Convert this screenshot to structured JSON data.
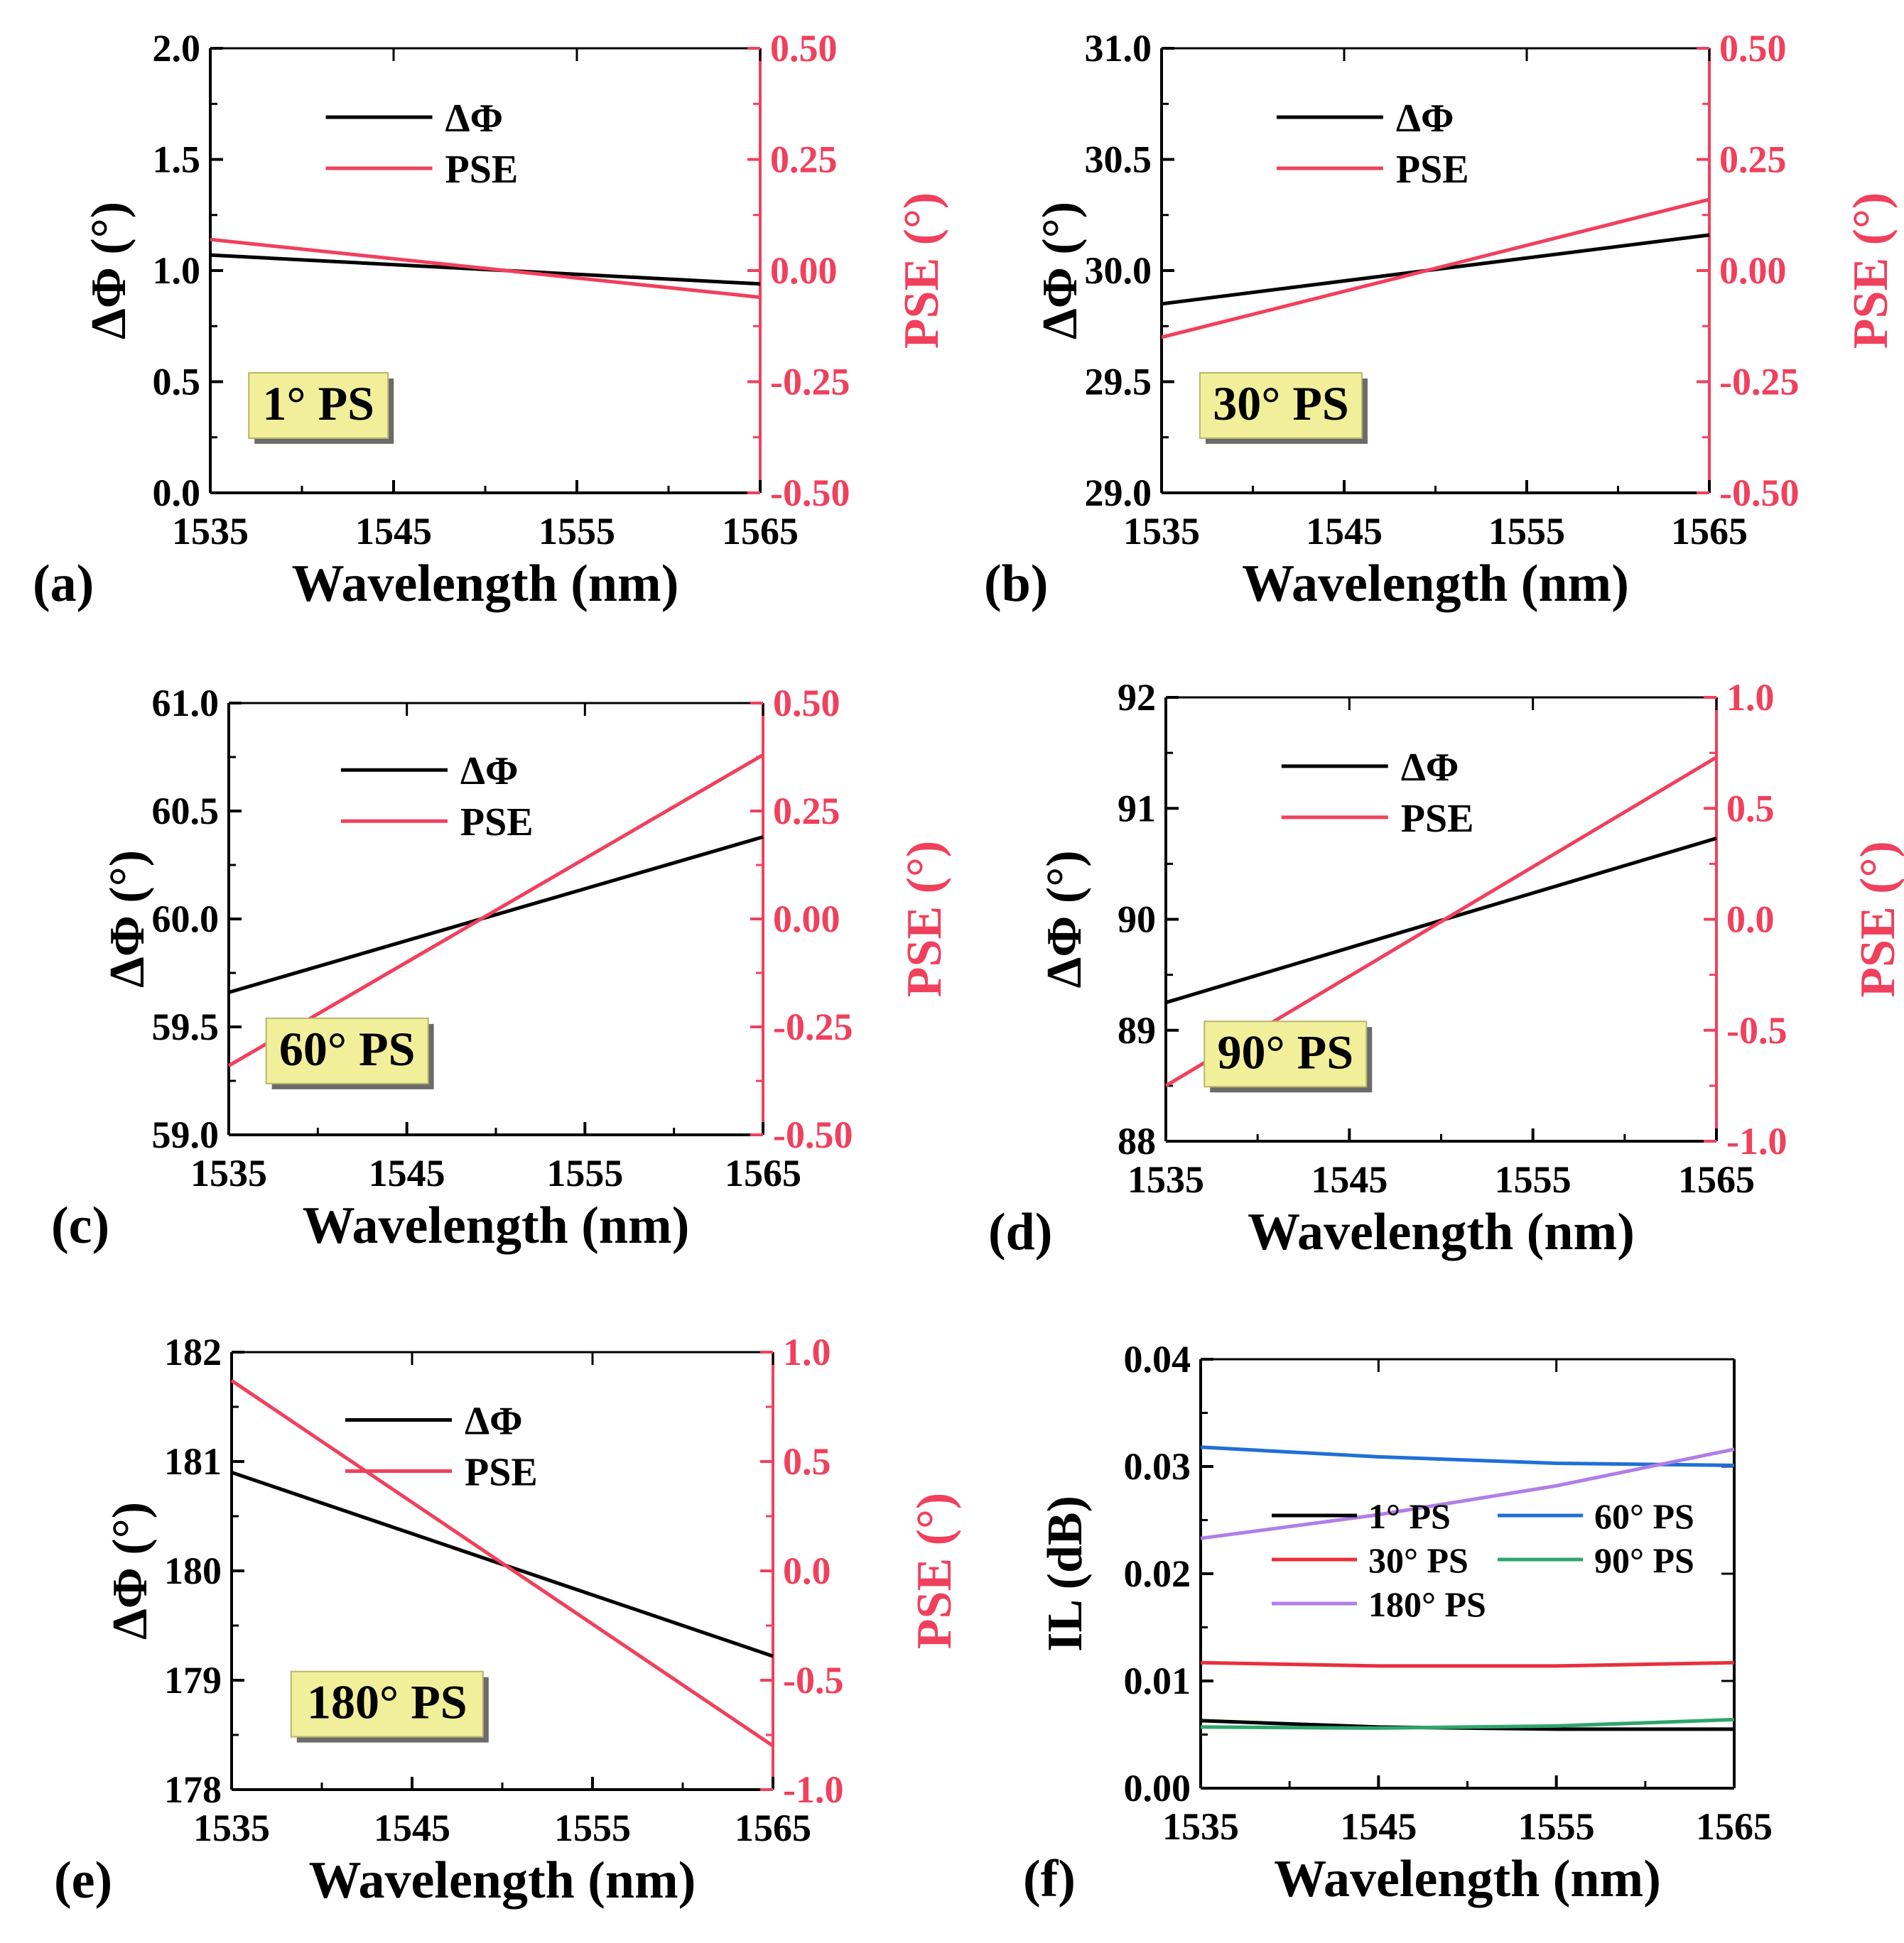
{
  "colors": {
    "black": "#000000",
    "pse": "#f0405c",
    "blue": "#1f6fd6",
    "red": "#e8303a",
    "green": "#2ea66b",
    "purple": "#b07ee8",
    "badge_fill": "#f2ef9b",
    "badge_shadow": "#6b6b6b"
  },
  "chart_data": [
    {
      "panel": "(a)",
      "type": "line",
      "badge": "1° PS",
      "xlabel": "Wavelength (nm)",
      "ylabel": "ΔΦ (°)",
      "ylabel2": "PSE (°)",
      "xlim": [
        1535,
        1565
      ],
      "ylim": [
        0.0,
        2.0
      ],
      "ylim2": [
        -0.5,
        0.5
      ],
      "xticks": [
        "1535",
        "1545",
        "1555",
        "1565"
      ],
      "yticks": [
        "0.0",
        "0.5",
        "1.0",
        "1.5",
        "2.0"
      ],
      "y2ticks": [
        "-0.50",
        "-0.25",
        "0.00",
        "0.25",
        "0.50"
      ],
      "legend": [
        "ΔΦ",
        "PSE"
      ],
      "series": [
        {
          "name": "ΔΦ",
          "axis": "left",
          "x": [
            1535,
            1565
          ],
          "values": [
            1.07,
            0.94
          ]
        },
        {
          "name": "PSE",
          "axis": "right",
          "x": [
            1535,
            1565
          ],
          "values": [
            0.07,
            -0.06
          ]
        }
      ]
    },
    {
      "panel": "(b)",
      "type": "line",
      "badge": "30° PS",
      "xlabel": "Wavelength (nm)",
      "ylabel": "ΔΦ (°)",
      "ylabel2": "PSE (°)",
      "xlim": [
        1535,
        1565
      ],
      "ylim": [
        29.0,
        31.0
      ],
      "ylim2": [
        -0.5,
        0.5
      ],
      "xticks": [
        "1535",
        "1545",
        "1555",
        "1565"
      ],
      "yticks": [
        "29.0",
        "29.5",
        "30.0",
        "30.5",
        "31.0"
      ],
      "y2ticks": [
        "-0.50",
        "-0.25",
        "0.00",
        "0.25",
        "0.50"
      ],
      "legend": [
        "ΔΦ",
        "PSE"
      ],
      "series": [
        {
          "name": "ΔΦ",
          "axis": "left",
          "x": [
            1535,
            1565
          ],
          "values": [
            29.85,
            30.16
          ]
        },
        {
          "name": "PSE",
          "axis": "right",
          "x": [
            1535,
            1565
          ],
          "values": [
            -0.15,
            0.16
          ]
        }
      ]
    },
    {
      "panel": "(c)",
      "type": "line",
      "badge": "60° PS",
      "xlabel": "Wavelength (nm)",
      "ylabel": "ΔΦ (°)",
      "ylabel2": "PSE (°)",
      "xlim": [
        1535,
        1565
      ],
      "ylim": [
        59.0,
        61.0
      ],
      "ylim2": [
        -0.5,
        0.5
      ],
      "xticks": [
        "1535",
        "1545",
        "1555",
        "1565"
      ],
      "yticks": [
        "59.0",
        "59.5",
        "60.0",
        "60.5",
        "61.0"
      ],
      "y2ticks": [
        "-0.50",
        "-0.25",
        "0.00",
        "0.25",
        "0.50"
      ],
      "legend": [
        "ΔΦ",
        "PSE"
      ],
      "series": [
        {
          "name": "ΔΦ",
          "axis": "left",
          "x": [
            1535,
            1565
          ],
          "values": [
            59.66,
            60.38
          ]
        },
        {
          "name": "PSE",
          "axis": "right",
          "x": [
            1535,
            1565
          ],
          "values": [
            -0.34,
            0.38
          ]
        }
      ]
    },
    {
      "panel": "(d)",
      "type": "line",
      "badge": "90° PS",
      "xlabel": "Wavelength (nm)",
      "ylabel": "ΔΦ (°)",
      "ylabel2": "PSE (°)",
      "xlim": [
        1535,
        1565
      ],
      "ylim": [
        88,
        92
      ],
      "ylim2": [
        -1.0,
        1.0
      ],
      "xticks": [
        "1535",
        "1545",
        "1555",
        "1565"
      ],
      "yticks": [
        "88",
        "89",
        "90",
        "91",
        "92"
      ],
      "y2ticks": [
        "-1.0",
        "-0.5",
        "0.0",
        "0.5",
        "1.0"
      ],
      "legend": [
        "ΔΦ",
        "PSE"
      ],
      "series": [
        {
          "name": "ΔΦ",
          "axis": "left",
          "x": [
            1535,
            1565
          ],
          "values": [
            89.25,
            90.73
          ]
        },
        {
          "name": "PSE",
          "axis": "right",
          "x": [
            1535,
            1565
          ],
          "values": [
            -0.75,
            0.73
          ]
        }
      ]
    },
    {
      "panel": "(e)",
      "type": "line",
      "badge": "180° PS",
      "xlabel": "Wavelength (nm)",
      "ylabel": "ΔΦ (°)",
      "ylabel2": "PSE (°)",
      "xlim": [
        1535,
        1565
      ],
      "ylim": [
        178,
        182
      ],
      "ylim2": [
        -1.0,
        1.0
      ],
      "xticks": [
        "1535",
        "1545",
        "1555",
        "1565"
      ],
      "yticks": [
        "178",
        "179",
        "180",
        "181",
        "182"
      ],
      "y2ticks": [
        "-1.0",
        "-0.5",
        "0.0",
        "0.5",
        "1.0"
      ],
      "legend": [
        "ΔΦ",
        "PSE"
      ],
      "series": [
        {
          "name": "ΔΦ",
          "axis": "left",
          "x": [
            1535,
            1565
          ],
          "values": [
            180.9,
            179.22
          ]
        },
        {
          "name": "PSE",
          "axis": "right",
          "x": [
            1535,
            1565
          ],
          "values": [
            0.87,
            -0.8
          ]
        }
      ]
    },
    {
      "panel": "(f)",
      "type": "line",
      "xlabel": "Wavelength (nm)",
      "ylabel": "IL (dB)",
      "xlim": [
        1535,
        1565
      ],
      "ylim": [
        0.0,
        0.04
      ],
      "xticks": [
        "1535",
        "1545",
        "1555",
        "1565"
      ],
      "yticks": [
        "0.00",
        "0.01",
        "0.02",
        "0.03",
        "0.04"
      ],
      "legend": [
        "1° PS",
        "60° PS",
        "30° PS",
        "90° PS",
        "180° PS"
      ],
      "series": [
        {
          "name": "1° PS",
          "x": [
            1535,
            1545,
            1555,
            1565
          ],
          "values": [
            0.0063,
            0.0057,
            0.0055,
            0.0055
          ]
        },
        {
          "name": "30° PS",
          "x": [
            1535,
            1545,
            1555,
            1565
          ],
          "values": [
            0.0117,
            0.0114,
            0.0114,
            0.0117
          ]
        },
        {
          "name": "60° PS",
          "x": [
            1535,
            1545,
            1555,
            1565
          ],
          "values": [
            0.0318,
            0.0309,
            0.0303,
            0.0301
          ]
        },
        {
          "name": "90° PS",
          "x": [
            1535,
            1545,
            1555,
            1565
          ],
          "values": [
            0.0057,
            0.0056,
            0.0058,
            0.0064
          ]
        },
        {
          "name": "180° PS",
          "x": [
            1535,
            1545,
            1555,
            1565
          ],
          "values": [
            0.0233,
            0.0255,
            0.0282,
            0.0316
          ]
        }
      ]
    }
  ]
}
